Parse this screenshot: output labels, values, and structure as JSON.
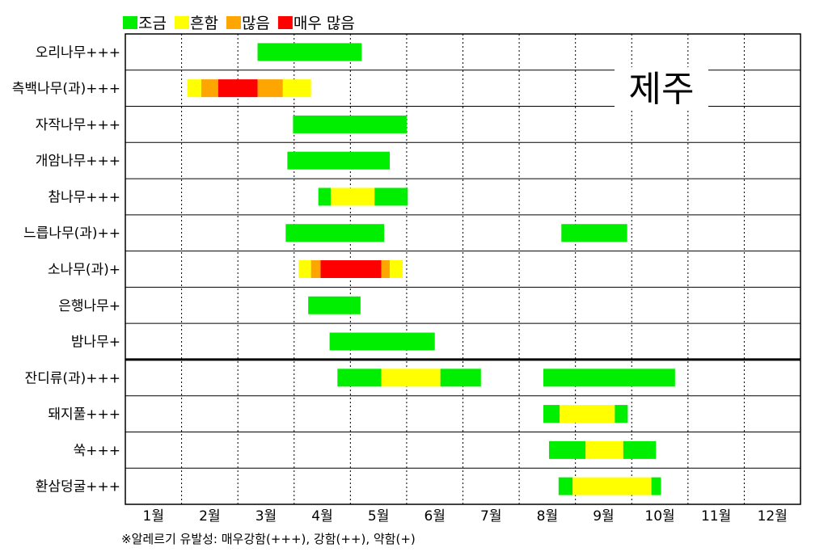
{
  "chart_data": {
    "type": "bar",
    "subtype": "horizontal-range-gantt",
    "region_label": "제주",
    "legend": [
      {
        "label": "조금",
        "color": "#00ee00"
      },
      {
        "label": "흔함",
        "color": "#ffff00"
      },
      {
        "label": "많음",
        "color": "#ffa500"
      },
      {
        "label": "매우 많음",
        "color": "#ff0000"
      }
    ],
    "months": [
      "1월",
      "2월",
      "3월",
      "4월",
      "5월",
      "6월",
      "7월",
      "8월",
      "9월",
      "10월",
      "11월",
      "12월"
    ],
    "xlim": [
      0,
      12
    ],
    "footnote": "※알레르기 유발성: 매우강함(+++), 강함(++), 약함(+)",
    "separator_after_row": 9,
    "grid": "vertical-dotted",
    "rows": [
      {
        "label": "오리나무+++",
        "segments": [
          {
            "start": 2.35,
            "end": 4.2,
            "level": 0
          }
        ]
      },
      {
        "label": "측백나무(과)+++",
        "segments": [
          {
            "start": 1.1,
            "end": 1.35,
            "level": 1
          },
          {
            "start": 1.35,
            "end": 1.65,
            "level": 2
          },
          {
            "start": 1.65,
            "end": 2.35,
            "level": 3
          },
          {
            "start": 2.35,
            "end": 2.8,
            "level": 2
          },
          {
            "start": 2.8,
            "end": 3.3,
            "level": 1
          }
        ]
      },
      {
        "label": "자작나무+++",
        "segments": [
          {
            "start": 2.98,
            "end": 5.0,
            "level": 0
          }
        ]
      },
      {
        "label": "개암나무+++",
        "segments": [
          {
            "start": 2.88,
            "end": 4.7,
            "level": 0
          }
        ]
      },
      {
        "label": "참나무+++",
        "segments": [
          {
            "start": 3.43,
            "end": 3.65,
            "level": 0
          },
          {
            "start": 3.65,
            "end": 4.43,
            "level": 1
          },
          {
            "start": 4.43,
            "end": 5.02,
            "level": 0
          }
        ]
      },
      {
        "label": "느릅나무(과)++",
        "segments": [
          {
            "start": 2.85,
            "end": 4.6,
            "level": 0
          },
          {
            "start": 7.75,
            "end": 8.92,
            "level": 0
          }
        ]
      },
      {
        "label": "소나무(과)+",
        "segments": [
          {
            "start": 3.08,
            "end": 3.3,
            "level": 1
          },
          {
            "start": 3.3,
            "end": 3.47,
            "level": 2
          },
          {
            "start": 3.47,
            "end": 4.55,
            "level": 3
          },
          {
            "start": 4.55,
            "end": 4.7,
            "level": 2
          },
          {
            "start": 4.7,
            "end": 4.93,
            "level": 1
          }
        ]
      },
      {
        "label": "은행나무+",
        "segments": [
          {
            "start": 3.25,
            "end": 4.18,
            "level": 0
          }
        ]
      },
      {
        "label": "밤나무+",
        "segments": [
          {
            "start": 3.63,
            "end": 5.5,
            "level": 0
          }
        ]
      },
      {
        "label": "잔디류(과)+++",
        "segments": [
          {
            "start": 3.77,
            "end": 4.55,
            "level": 0
          },
          {
            "start": 4.55,
            "end": 5.6,
            "level": 1
          },
          {
            "start": 5.6,
            "end": 6.32,
            "level": 0
          },
          {
            "start": 7.43,
            "end": 9.77,
            "level": 0
          }
        ]
      },
      {
        "label": "돼지풀+++",
        "segments": [
          {
            "start": 7.43,
            "end": 7.72,
            "level": 0
          },
          {
            "start": 7.72,
            "end": 8.7,
            "level": 1
          },
          {
            "start": 8.7,
            "end": 8.93,
            "level": 0
          }
        ]
      },
      {
        "label": "쑥+++",
        "segments": [
          {
            "start": 7.53,
            "end": 8.18,
            "level": 0
          },
          {
            "start": 8.18,
            "end": 8.85,
            "level": 1
          },
          {
            "start": 8.85,
            "end": 9.43,
            "level": 0
          }
        ]
      },
      {
        "label": "환삼덩굴+++",
        "segments": [
          {
            "start": 7.7,
            "end": 7.95,
            "level": 0
          },
          {
            "start": 7.95,
            "end": 9.35,
            "level": 1
          },
          {
            "start": 9.35,
            "end": 9.52,
            "level": 0
          }
        ]
      }
    ]
  }
}
